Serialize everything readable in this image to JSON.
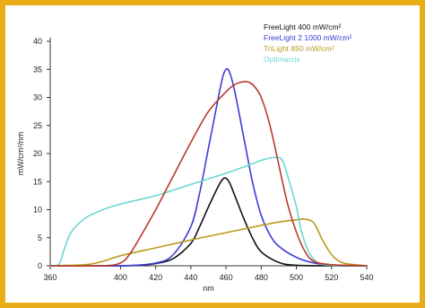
{
  "chart_data": {
    "type": "line",
    "xlabel": "nm",
    "ylabel": "mW/cm²/nm",
    "xlim": [
      360,
      540
    ],
    "ylim": [
      0,
      40
    ],
    "xticks": [
      360,
      400,
      420,
      440,
      460,
      480,
      500,
      520,
      540
    ],
    "yticks": [
      0,
      5,
      10,
      15,
      20,
      25,
      30,
      35,
      40
    ],
    "grid": false,
    "legend_position": "top-right",
    "series": [
      {
        "name": "FreeLight 400 mW/cm²",
        "color": "#111111",
        "points": [
          [
            360,
            0
          ],
          [
            380,
            0
          ],
          [
            400,
            0
          ],
          [
            410,
            0.1
          ],
          [
            420,
            0.4
          ],
          [
            430,
            1.3
          ],
          [
            440,
            4
          ],
          [
            445,
            7
          ],
          [
            450,
            10.5
          ],
          [
            455,
            13.8
          ],
          [
            458,
            15.4
          ],
          [
            460,
            15.6
          ],
          [
            462,
            14.8
          ],
          [
            465,
            12.5
          ],
          [
            470,
            8.5
          ],
          [
            475,
            5
          ],
          [
            480,
            2.5
          ],
          [
            490,
            0.6
          ],
          [
            500,
            0.1
          ],
          [
            520,
            0
          ],
          [
            540,
            0
          ]
        ]
      },
      {
        "name": "FreeLight 2 1000 mW/cm²",
        "color": "#3b3bd9",
        "points": [
          [
            360,
            0
          ],
          [
            400,
            0
          ],
          [
            420,
            0.5
          ],
          [
            430,
            2
          ],
          [
            440,
            7
          ],
          [
            445,
            13
          ],
          [
            450,
            21
          ],
          [
            455,
            29
          ],
          [
            458,
            33.5
          ],
          [
            460,
            35
          ],
          [
            462,
            34.5
          ],
          [
            465,
            31
          ],
          [
            470,
            23
          ],
          [
            475,
            15
          ],
          [
            480,
            9
          ],
          [
            485,
            5.5
          ],
          [
            490,
            3.5
          ],
          [
            500,
            1.5
          ],
          [
            510,
            0.5
          ],
          [
            520,
            0.1
          ],
          [
            540,
            0
          ]
        ]
      },
      {
        "name": "TriLight 850 mW/cm²",
        "color": "#b89a1c",
        "points": [
          [
            360,
            0
          ],
          [
            380,
            0.2
          ],
          [
            390,
            0.8
          ],
          [
            400,
            1.8
          ],
          [
            420,
            3.2
          ],
          [
            440,
            4.6
          ],
          [
            460,
            5.9
          ],
          [
            480,
            7.2
          ],
          [
            490,
            7.8
          ],
          [
            500,
            8.2
          ],
          [
            505,
            8.3
          ],
          [
            510,
            7.6
          ],
          [
            515,
            4.5
          ],
          [
            520,
            2
          ],
          [
            525,
            0.7
          ],
          [
            530,
            0.3
          ],
          [
            540,
            0
          ]
        ]
      },
      {
        "name": "Optimarcis",
        "color": "#6ad8d0",
        "points": [
          [
            360,
            0
          ],
          [
            365,
            0.3
          ],
          [
            368,
            3
          ],
          [
            372,
            6
          ],
          [
            380,
            8.5
          ],
          [
            390,
            10
          ],
          [
            400,
            11
          ],
          [
            420,
            12.5
          ],
          [
            440,
            14.5
          ],
          [
            460,
            16.5
          ],
          [
            475,
            18.2
          ],
          [
            482,
            19
          ],
          [
            488,
            19.3
          ],
          [
            492,
            18.8
          ],
          [
            496,
            15
          ],
          [
            500,
            10.5
          ],
          [
            503,
            6
          ],
          [
            507,
            2.5
          ],
          [
            512,
            0.6
          ],
          [
            520,
            0.1
          ],
          [
            540,
            0
          ]
        ]
      },
      {
        "name": "",
        "color": "#b83a2a",
        "points": [
          [
            360,
            0
          ],
          [
            390,
            0
          ],
          [
            400,
            0.5
          ],
          [
            405,
            2
          ],
          [
            410,
            4.5
          ],
          [
            420,
            10
          ],
          [
            430,
            16
          ],
          [
            440,
            22
          ],
          [
            450,
            27.5
          ],
          [
            460,
            31
          ],
          [
            465,
            32.3
          ],
          [
            470,
            32.8
          ],
          [
            473,
            32.7
          ],
          [
            476,
            32
          ],
          [
            480,
            30
          ],
          [
            485,
            25
          ],
          [
            490,
            18
          ],
          [
            495,
            11
          ],
          [
            500,
            6
          ],
          [
            505,
            2.5
          ],
          [
            510,
            0.8
          ],
          [
            520,
            0.2
          ],
          [
            540,
            0
          ]
        ]
      }
    ]
  }
}
